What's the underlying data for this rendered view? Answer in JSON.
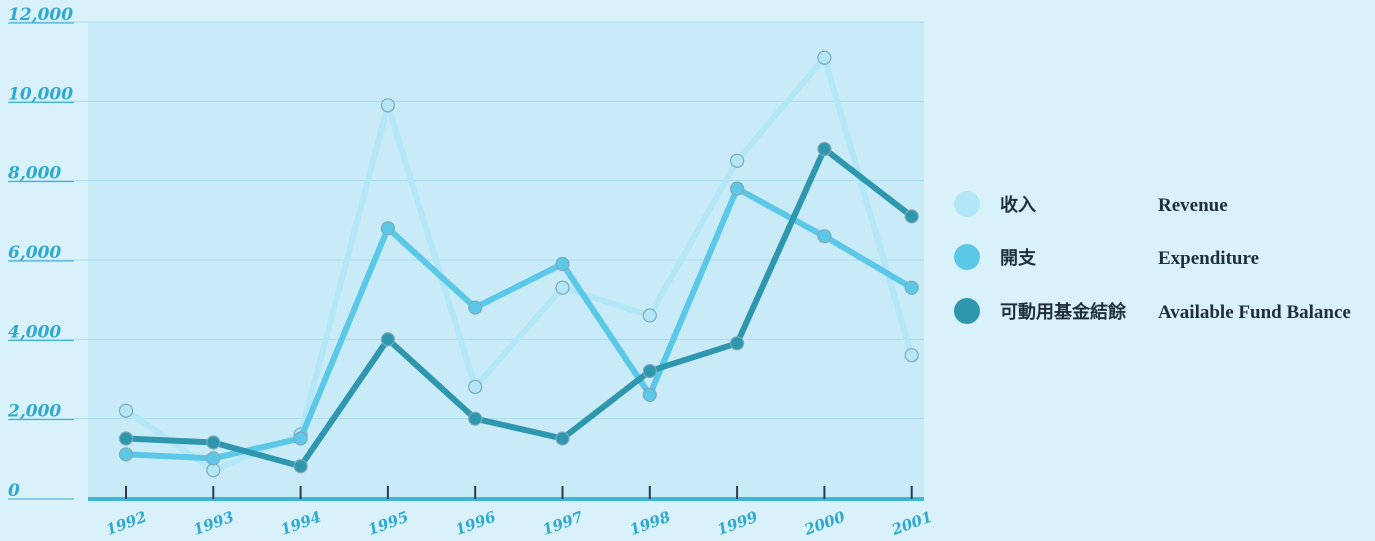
{
  "colors": {
    "background": "#d9f1fb",
    "plot_area": "#c9ebf8",
    "axis": "#3fb6d8",
    "tick_text": "#2fa9cf",
    "gridline": "#a9dcee",
    "revenue": "#b3e6f6",
    "expenditure": "#5cc8e8",
    "balance": "#2e97ad"
  },
  "chart_data": {
    "type": "line",
    "categories": [
      "1992",
      "1993",
      "1994",
      "1995",
      "1996",
      "1997",
      "1998",
      "1999",
      "2000",
      "2001"
    ],
    "ylim": [
      0,
      12000
    ],
    "yticks": [
      "12,000",
      "10,000",
      "8,000",
      "6,000",
      "4,000",
      "2,000",
      "0"
    ],
    "ytick_values": [
      12000,
      10000,
      8000,
      6000,
      4000,
      2000,
      0
    ],
    "grid": "horizontal",
    "legend_position": "right",
    "series": [
      {
        "name": "Revenue",
        "name_zh": "收入",
        "color_key": "revenue",
        "values": [
          2200,
          700,
          1600,
          9900,
          2800,
          5300,
          4600,
          8500,
          11100,
          3600
        ]
      },
      {
        "name": "Expenditure",
        "name_zh": "開支",
        "color_key": "expenditure",
        "values": [
          1100,
          1000,
          1500,
          6800,
          4800,
          5900,
          2600,
          7800,
          6600,
          5300
        ]
      },
      {
        "name": "Available Fund Balance",
        "name_zh": "可動用基金結餘",
        "color_key": "balance",
        "values": [
          1500,
          1400,
          800,
          4000,
          2000,
          1500,
          3200,
          3900,
          8800,
          7100
        ]
      }
    ]
  }
}
